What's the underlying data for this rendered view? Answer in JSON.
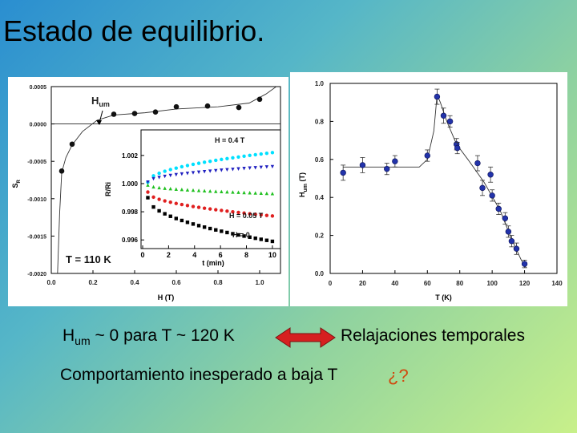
{
  "slide": {
    "title": "Estado de equilibrio.",
    "caption_hum_main": "H",
    "caption_hum_sub": "um",
    "caption_hum_rest": " ~ 0 para T ~ 120 K",
    "caption_relax": "Relajaciones temporales",
    "caption_comp": "Comportamiento inesperado a baja T",
    "caption_question": "¿?",
    "arrow_color": "#d62020"
  },
  "chart_data": [
    {
      "type": "scatter",
      "id": "sr_vs_h",
      "xlabel": "H (T)",
      "ylabel": "S",
      "ylabel_sub": "R",
      "xlim": [
        0.0,
        1.1
      ],
      "ylim": [
        -0.002,
        0.0005
      ],
      "x_ticks": [
        "0.0",
        "0.2",
        "0.4",
        "0.6",
        "0.8",
        "1.0"
      ],
      "x_tick_values": [
        0.0,
        0.2,
        0.4,
        0.6,
        0.8,
        1.0
      ],
      "y_ticks": [
        "0.0005",
        "0.0000",
        "-0.0005",
        "-0.0010",
        "-0.0015",
        "-0.0020"
      ],
      "y_tick_values": [
        0.0005,
        0.0,
        -0.0005,
        -0.001,
        -0.0015,
        -0.002
      ],
      "annotations": [
        "H",
        "um",
        "T = 110 K"
      ],
      "points": [
        {
          "x": 0.05,
          "y": -0.00063
        },
        {
          "x": 0.1,
          "y": -0.00027
        },
        {
          "x": 0.3,
          "y": 0.00013
        },
        {
          "x": 0.4,
          "y": 0.00014
        },
        {
          "x": 0.5,
          "y": 0.00016
        },
        {
          "x": 0.6,
          "y": 0.00023
        },
        {
          "x": 0.75,
          "y": 0.00024
        },
        {
          "x": 0.9,
          "y": 0.00022
        },
        {
          "x": 1.0,
          "y": 0.00033
        }
      ],
      "curve": [
        [
          0.03,
          -0.002
        ],
        [
          0.04,
          -0.0012
        ],
        [
          0.05,
          -0.00065
        ],
        [
          0.07,
          -0.00045
        ],
        [
          0.1,
          -0.00028
        ],
        [
          0.15,
          -0.0001
        ],
        [
          0.22,
          5e-05
        ],
        [
          0.3,
          0.00012
        ],
        [
          0.45,
          0.00015
        ],
        [
          0.6,
          0.0002
        ],
        [
          0.8,
          0.00023
        ],
        [
          0.95,
          0.00028
        ],
        [
          1.03,
          0.0004
        ],
        [
          1.08,
          0.0005
        ]
      ],
      "inset": {
        "xlabel": "t (min)",
        "ylabel": "R/Ri",
        "xlim": [
          0,
          10.5
        ],
        "ylim": [
          0.9955,
          1.0037
        ],
        "x_ticks": [
          "0",
          "2",
          "4",
          "6",
          "8",
          "10"
        ],
        "x_tick_values": [
          0,
          2,
          4,
          6,
          8,
          10
        ],
        "y_ticks": [
          "1.002",
          "1.000",
          "0.998",
          "0.996"
        ],
        "y_tick_values": [
          1.002,
          1.0,
          0.998,
          0.996
        ],
        "series": [
          {
            "name": "H = 0.4 T",
            "color": "#00e0ff",
            "marker": "circle",
            "start": 1.0001,
            "end": 1.0022
          },
          {
            "name": "",
            "color": "#2020c0",
            "marker": "triangle-down",
            "start": 1.0001,
            "end": 1.0012
          },
          {
            "name": "",
            "color": "#20c020",
            "marker": "triangle-up",
            "start": 0.9999,
            "end": 0.9993
          },
          {
            "name": "H = 0.05 T",
            "color": "#e02020",
            "marker": "circle",
            "start": 0.9994,
            "end": 0.9977
          },
          {
            "name": "H = 0",
            "color": "#000000",
            "marker": "square",
            "start": 0.999,
            "end": 0.9959
          }
        ]
      }
    },
    {
      "type": "scatter",
      "id": "hum_vs_t",
      "xlabel": "T (K)",
      "ylabel": "H",
      "ylabel_sub": "um",
      "ylabel_tail": " (T)",
      "xlim": [
        0,
        140
      ],
      "ylim": [
        0.0,
        1.0
      ],
      "x_ticks": [
        "0",
        "20",
        "40",
        "60",
        "80",
        "100",
        "120",
        "140"
      ],
      "x_tick_values": [
        0,
        20,
        40,
        60,
        80,
        100,
        120,
        140
      ],
      "y_ticks": [
        "1.0",
        "0.8",
        "0.6",
        "0.4",
        "0.2",
        "0.0"
      ],
      "y_tick_values": [
        1.0,
        0.8,
        0.6,
        0.4,
        0.2,
        0.0
      ],
      "points": [
        {
          "x": 8,
          "y": 0.53,
          "err": 0.04
        },
        {
          "x": 20,
          "y": 0.57,
          "err": 0.04
        },
        {
          "x": 35,
          "y": 0.55,
          "err": 0.03
        },
        {
          "x": 40,
          "y": 0.59,
          "err": 0.03
        },
        {
          "x": 60,
          "y": 0.62,
          "err": 0.03
        },
        {
          "x": 66,
          "y": 0.93,
          "err": 0.04
        },
        {
          "x": 70,
          "y": 0.83,
          "err": 0.04
        },
        {
          "x": 74,
          "y": 0.8,
          "err": 0.03
        },
        {
          "x": 78,
          "y": 0.68,
          "err": 0.03
        },
        {
          "x": 78.5,
          "y": 0.66,
          "err": 0.03
        },
        {
          "x": 91,
          "y": 0.58,
          "err": 0.04
        },
        {
          "x": 94,
          "y": 0.45,
          "err": 0.04
        },
        {
          "x": 99,
          "y": 0.52,
          "err": 0.04
        },
        {
          "x": 100,
          "y": 0.41,
          "err": 0.03
        },
        {
          "x": 104,
          "y": 0.34,
          "err": 0.03
        },
        {
          "x": 108,
          "y": 0.29,
          "err": 0.03
        },
        {
          "x": 110,
          "y": 0.22,
          "err": 0.03
        },
        {
          "x": 112,
          "y": 0.17,
          "err": 0.03
        },
        {
          "x": 115,
          "y": 0.13,
          "err": 0.03
        },
        {
          "x": 120,
          "y": 0.05,
          "err": 0.02
        }
      ],
      "curve": [
        [
          8,
          0.56
        ],
        [
          20,
          0.56
        ],
        [
          40,
          0.56
        ],
        [
          55,
          0.56
        ],
        [
          60,
          0.6
        ],
        [
          64,
          0.75
        ],
        [
          66,
          0.94
        ],
        [
          68,
          0.9
        ],
        [
          72,
          0.8
        ],
        [
          78,
          0.68
        ],
        [
          85,
          0.6
        ],
        [
          95,
          0.48
        ],
        [
          105,
          0.33
        ],
        [
          112,
          0.18
        ],
        [
          118,
          0.07
        ],
        [
          121,
          0.03
        ]
      ]
    }
  ]
}
